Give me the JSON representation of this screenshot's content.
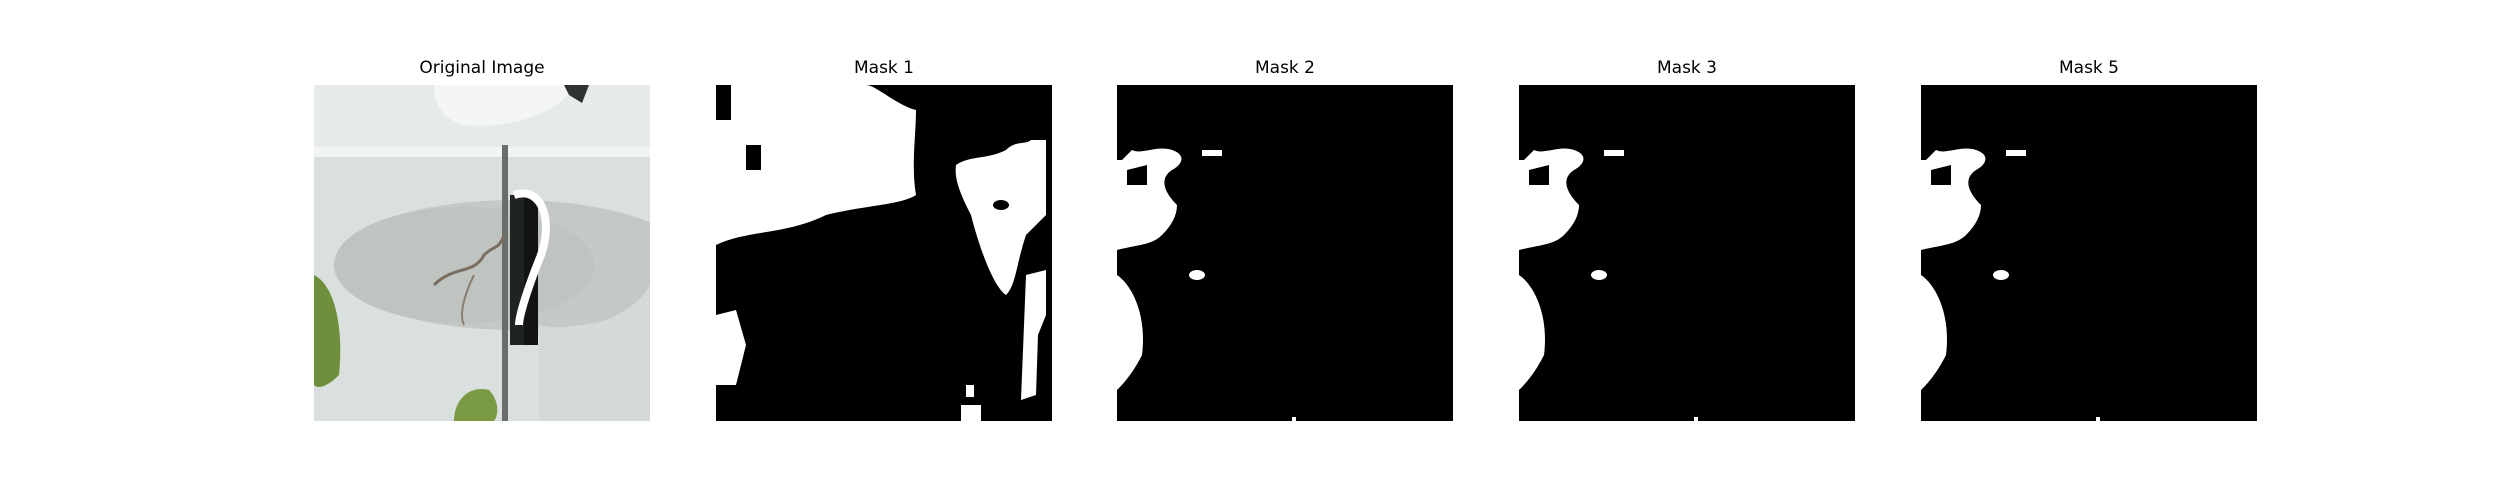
{
  "panels": [
    {
      "title": "Original Image",
      "kind": "photo"
    },
    {
      "title": "Mask 1",
      "kind": "mask"
    },
    {
      "title": "Mask 2",
      "kind": "mask"
    },
    {
      "title": "Mask 3",
      "kind": "mask"
    },
    {
      "title": "Mask 5",
      "kind": "mask"
    }
  ],
  "colors": {
    "mask_background": "#000000",
    "mask_foreground": "#ffffff",
    "photo_wall": "#dfe5e2",
    "photo_leaf": "#6f8f3c"
  }
}
